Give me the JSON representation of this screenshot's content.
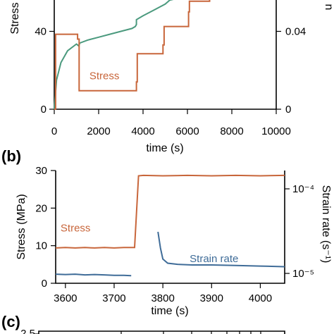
{
  "colors": {
    "stress": "#c8663b",
    "strain": "#4b9a7e",
    "strain_rate": "#3f6c98",
    "axis": "#000000"
  },
  "panel_labels": {
    "b": "(b)",
    "c": "(c)"
  },
  "chart_data": [
    {
      "panel": "a",
      "type": "line",
      "xlabel": "time (s)",
      "ylabel": "Stress",
      "y2label": "n",
      "xlim": [
        0,
        10000
      ],
      "ylim": [
        0,
        60
      ],
      "y2lim": [
        0,
        0.06
      ],
      "x_ticks": [
        0,
        2000,
        4000,
        6000,
        8000,
        10000
      ],
      "y_ticks": [
        0,
        40
      ],
      "y2_ticks": [
        0,
        0.04
      ],
      "annotations": [
        {
          "text": "Stress",
          "x": 1900,
          "y": 14,
          "series": "Stress"
        }
      ],
      "series": [
        {
          "name": "Stress",
          "axis": "left",
          "x": [
            0,
            60,
            60,
            1050,
            1050,
            1120,
            1120,
            3700,
            3700,
            3740,
            3740,
            4900,
            4900,
            4950,
            4950,
            6050,
            6050,
            6090,
            6090,
            7000,
            7000,
            7050,
            7050,
            8050
          ],
          "y": [
            0,
            0,
            38.5,
            38.5,
            36,
            36,
            9.5,
            9.5,
            14,
            14,
            28.5,
            28.5,
            33,
            33,
            42.5,
            42.5,
            50,
            50,
            55.5,
            55.5,
            57.5,
            57.5,
            57.5,
            57.5
          ]
        },
        {
          "axis": "right",
          "x": [
            0,
            100,
            300,
            600,
            1000,
            1100,
            1150,
            1500,
            2000,
            2500,
            3000,
            3500,
            3650,
            3700,
            3700,
            4000,
            4500,
            5000,
            5200,
            5500
          ],
          "y": [
            0,
            0.015,
            0.024,
            0.03,
            0.0335,
            0.0325,
            0.034,
            0.0355,
            0.037,
            0.0385,
            0.04,
            0.0415,
            0.0425,
            0.0435,
            0.046,
            0.048,
            0.051,
            0.054,
            0.056,
            0.06
          ]
        }
      ]
    },
    {
      "panel": "b",
      "type": "line",
      "xlabel": "time (s)",
      "ylabel": "Stress (MPa)",
      "y2label": "Strain rate (s⁻¹)",
      "xlim": [
        3580,
        4050
      ],
      "ylim": [
        0,
        30
      ],
      "y2_scale": "log",
      "y2lim": [
        8e-06,
        0.0001
      ],
      "x_ticks": [
        3600,
        3700,
        3800,
        3900,
        4000
      ],
      "y_ticks": [
        0,
        10,
        20,
        30
      ],
      "y2_ticks": [
        1e-05,
        0.0001
      ],
      "y2_tick_labels": [
        "10⁻⁵",
        "10⁻⁴"
      ],
      "annotations": [
        {
          "text": "Stress",
          "x": 3590,
          "y": 13.8,
          "series": "Stress"
        },
        {
          "text": "Strain rate",
          "x": 3855,
          "y": 5.6,
          "series": "Strain rate"
        }
      ],
      "series": [
        {
          "name": "Stress",
          "axis": "left",
          "x": [
            3580,
            3600,
            3620,
            3640,
            3660,
            3680,
            3700,
            3720,
            3740,
            3742,
            3750,
            3760,
            3800,
            3850,
            3900,
            3950,
            4000,
            4050
          ],
          "y": [
            9.4,
            9.5,
            9.4,
            9.5,
            9.4,
            9.5,
            9.4,
            9.5,
            9.5,
            9.5,
            28.6,
            28.7,
            28.6,
            28.7,
            28.6,
            28.7,
            28.6,
            28.7
          ]
        },
        {
          "name": "Strain rate",
          "axis": "right",
          "x": [
            3580,
            3600,
            3620,
            3640,
            3660,
            3680,
            3700,
            3720,
            3735,
            3790,
            3795,
            3800,
            3810,
            3830,
            3860,
            3900,
            3950,
            4000,
            4050
          ],
          "y": [
            9.8e-06,
            9.7e-06,
            9.8e-06,
            9.6e-06,
            9.7e-06,
            9.6e-06,
            9.5e-06,
            9.5e-06,
            9.4e-06,
            3.1e-05,
            2e-05,
            1.48e-05,
            1.32e-05,
            1.28e-05,
            1.26e-05,
            1.26e-05,
            1.24e-05,
            1.22e-05,
            1.2e-05
          ]
        }
      ]
    },
    {
      "panel": "c",
      "type": "line",
      "y_ticks_visible": [
        "2.5"
      ]
    }
  ]
}
